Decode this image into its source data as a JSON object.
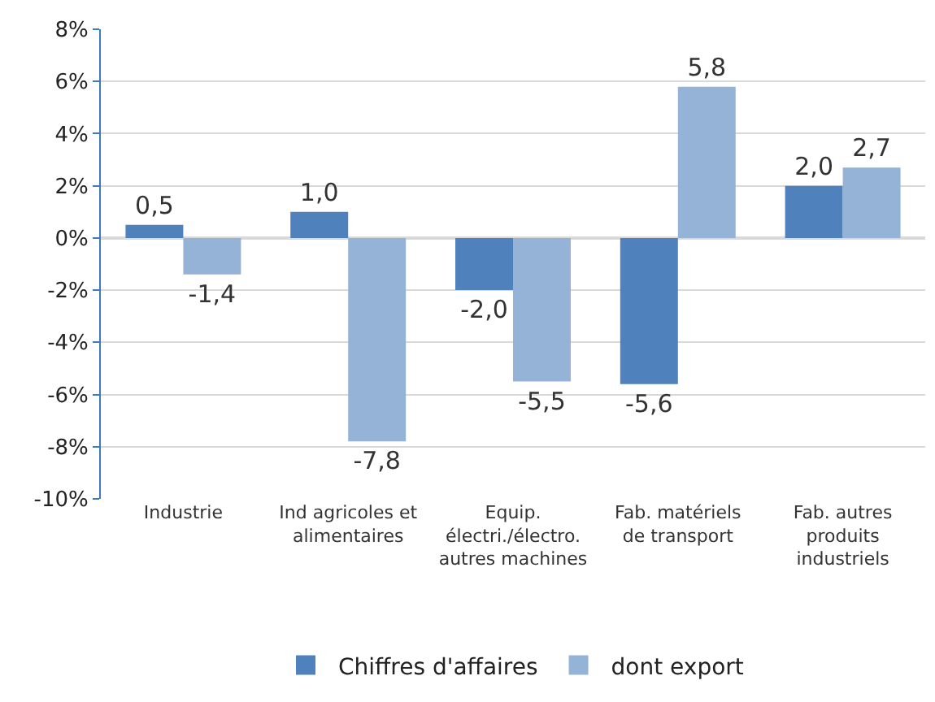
{
  "chart_data": {
    "type": "bar",
    "categories": [
      "Industrie",
      "Ind agricoles et alimentaires",
      "Equip. électri./électro. autres machines",
      "Fab. matériels de transport",
      "Fab. autres produits industriels"
    ],
    "series": [
      {
        "name": "Chiffres d'affaires",
        "color": "#4f81bd",
        "values": [
          0.5,
          1.0,
          -2.0,
          -5.6,
          2.0
        ],
        "value_labels": [
          "0,5",
          "1,0",
          "-2,0",
          "-5,6",
          "2,0"
        ]
      },
      {
        "name": "dont export",
        "color": "#95b3d7",
        "values": [
          -1.4,
          -7.8,
          -5.5,
          5.8,
          2.7
        ],
        "value_labels": [
          "-1,4",
          "-7,8",
          "-5,5",
          "5,8",
          "2,7"
        ]
      }
    ],
    "ylim": [
      -10,
      8
    ],
    "yticks": [
      {
        "value": -10,
        "label": "-10%"
      },
      {
        "value": -8,
        "label": "-8%"
      },
      {
        "value": -6,
        "label": "-6%"
      },
      {
        "value": -4,
        "label": "-4%"
      },
      {
        "value": -2,
        "label": "-2%"
      },
      {
        "value": 0,
        "label": "0%"
      },
      {
        "value": 2,
        "label": "2%"
      },
      {
        "value": 4,
        "label": "4%"
      },
      {
        "value": 6,
        "label": "6%"
      },
      {
        "value": 8,
        "label": "8%"
      }
    ],
    "grid": "y",
    "legend": "bottom"
  }
}
